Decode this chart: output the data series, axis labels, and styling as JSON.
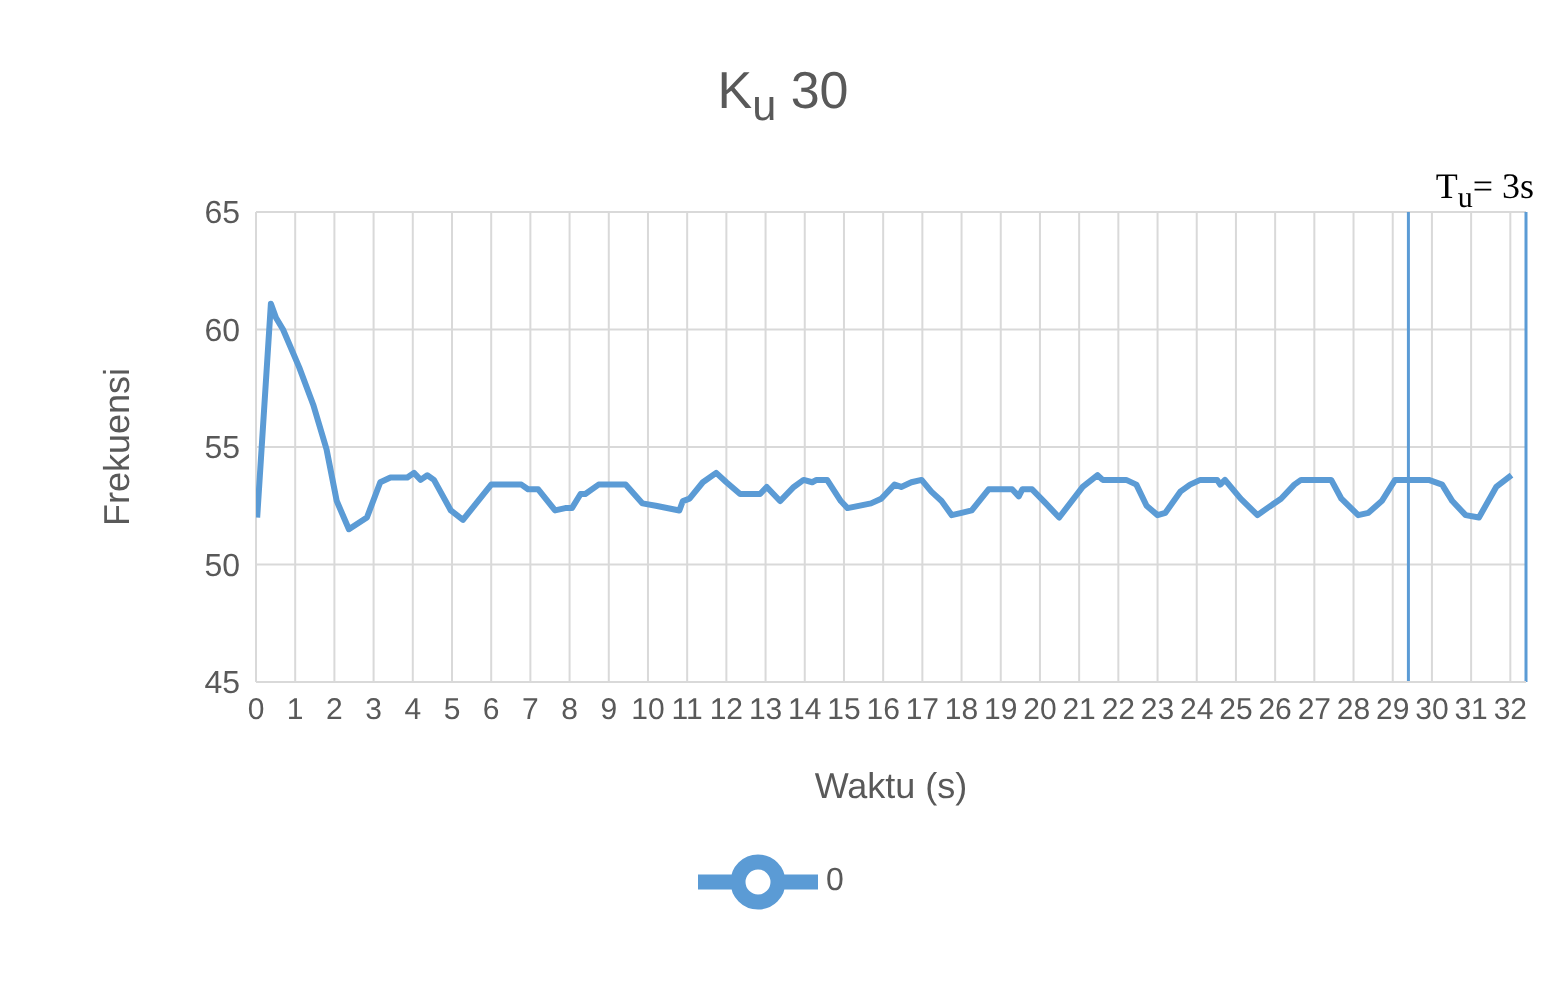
{
  "chart_data": {
    "type": "line",
    "title": "K$_{u}$ 30",
    "xlabel": "Waktu (s)",
    "ylabel": "Frekuensi",
    "x": [
      0.03,
      0.38,
      0.51,
      0.69,
      1.1,
      1.46,
      1.8,
      2.06,
      2.37,
      2.83,
      3.17,
      3.43,
      3.86,
      4.03,
      4.2,
      4.37,
      4.54,
      4.97,
      5.28,
      6.0,
      6.77,
      6.94,
      7.2,
      7.63,
      7.89,
      8.06,
      8.28,
      8.4,
      8.74,
      9.43,
      9.86,
      10.2,
      10.8,
      10.89,
      11.06,
      11.4,
      11.74,
      12.0,
      12.35,
      12.86,
      13.03,
      13.37,
      13.72,
      13.97,
      14.19,
      14.3,
      14.57,
      14.92,
      15.09,
      15.69,
      15.95,
      16.29,
      16.46,
      16.72,
      16.98,
      17.23,
      17.49,
      17.75,
      18.0,
      18.26,
      18.69,
      19.29,
      19.46,
      19.55,
      19.8,
      20.15,
      20.49,
      21.09,
      21.47,
      21.6,
      22.2,
      22.46,
      22.72,
      23.0,
      23.2,
      23.58,
      23.83,
      24.09,
      24.52,
      24.6,
      24.72,
      25.12,
      25.55,
      25.8,
      26.15,
      26.49,
      26.66,
      27.43,
      27.69,
      28.12,
      28.38,
      28.72,
      29.06,
      29.92,
      30.26,
      30.52,
      30.86,
      31.2,
      31.64,
      32.03
    ],
    "series": [
      {
        "name": "0",
        "color": "#5b9bd5",
        "values": [
          52.0,
          61.1,
          60.5,
          60.0,
          58.4,
          56.8,
          54.9,
          52.7,
          51.5,
          52.0,
          53.5,
          53.7,
          53.7,
          53.9,
          53.6,
          53.8,
          53.6,
          52.3,
          51.9,
          53.4,
          53.4,
          53.2,
          53.2,
          52.3,
          52.4,
          52.4,
          53.0,
          53.0,
          53.4,
          53.4,
          52.6,
          52.5,
          52.3,
          52.7,
          52.8,
          53.5,
          53.9,
          53.5,
          53.0,
          53.0,
          53.3,
          52.7,
          53.3,
          53.6,
          53.5,
          53.6,
          53.6,
          52.7,
          52.4,
          52.6,
          52.8,
          53.4,
          53.3,
          53.5,
          53.6,
          53.1,
          52.7,
          52.1,
          52.2,
          52.3,
          53.2,
          53.2,
          52.9,
          53.2,
          53.2,
          52.6,
          52.0,
          53.3,
          53.8,
          53.6,
          53.6,
          53.4,
          52.5,
          52.1,
          52.2,
          53.1,
          53.4,
          53.6,
          53.6,
          53.4,
          53.6,
          52.8,
          52.1,
          52.4,
          52.8,
          53.4,
          53.6,
          53.6,
          52.8,
          52.1,
          52.2,
          52.7,
          53.6,
          53.6,
          53.4,
          52.7,
          52.1,
          52.0,
          53.3,
          53.8
        ]
      }
    ],
    "xlim": [
      0,
      32.4
    ],
    "xticks": [
      0,
      1,
      2,
      3,
      4,
      5,
      6,
      7,
      8,
      9,
      10,
      11,
      12,
      13,
      14,
      15,
      16,
      17,
      18,
      19,
      20,
      21,
      22,
      23,
      24,
      25,
      26,
      27,
      28,
      29,
      30,
      31,
      32
    ],
    "ylim": [
      45,
      65
    ],
    "yticks": [
      45,
      50,
      55,
      60,
      65
    ],
    "grid": true,
    "legend": "bottom",
    "marker": "none",
    "line_style": "solid",
    "ref_lines": [
      {
        "axis": "x",
        "value": 29.4,
        "color": "#5b9bd5"
      },
      {
        "axis": "x",
        "value": 32.4,
        "color": "#5b9bd5"
      }
    ],
    "annotations": [
      "T$_{u}$= 3s"
    ]
  }
}
